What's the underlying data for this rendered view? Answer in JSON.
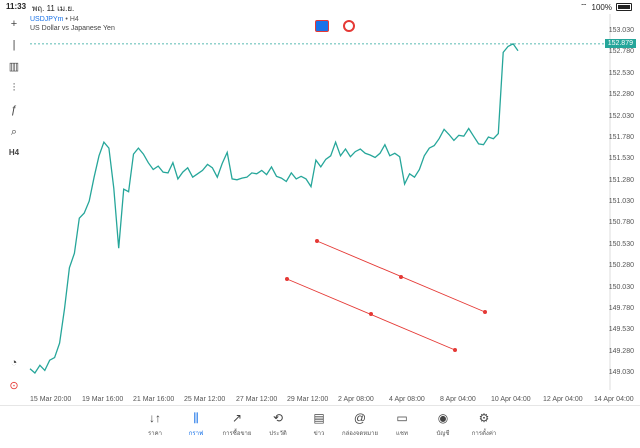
{
  "status": {
    "time": "11:33",
    "date": "พฤ. 11 เม.ย.",
    "battery": "100%"
  },
  "header": {
    "symbol": "USDJPYm",
    "separator": "•",
    "timeframe": "H4",
    "subtitle": "US Dollar vs Japanese Yen"
  },
  "toolbar_left": [
    {
      "name": "crosshair-icon",
      "glyph": "+"
    },
    {
      "name": "candles-icon",
      "glyph": "|"
    },
    {
      "name": "indicators-icon",
      "glyph": "▥"
    },
    {
      "name": "settings-sliders-icon",
      "glyph": "⫶"
    },
    {
      "name": "function-icon",
      "glyph": "ƒ"
    },
    {
      "name": "objects-icon",
      "glyph": "⌕"
    },
    {
      "name": "timeframe-label",
      "glyph": "H4"
    }
  ],
  "price_tag": "152.879",
  "chart_data": {
    "type": "line",
    "series": [
      {
        "values": [
          149.08,
          149.03,
          149.12,
          149.06,
          149.18,
          149.21,
          149.38,
          149.78,
          150.26,
          150.43,
          150.84,
          150.9,
          151.04,
          151.32,
          151.57,
          151.73,
          151.66,
          151.19,
          150.49,
          151.18,
          151.15,
          151.59,
          151.66,
          151.59,
          151.49,
          151.41,
          151.45,
          151.38,
          151.37,
          151.49,
          151.3,
          151.38,
          151.43,
          151.32,
          151.36,
          151.4,
          151.47,
          151.43,
          151.32,
          151.48,
          151.61,
          151.3,
          151.29,
          151.31,
          151.32,
          151.37,
          151.36,
          151.4,
          151.35,
          151.44,
          151.33,
          151.31,
          151.27,
          151.37,
          151.3,
          151.33,
          151.3,
          151.21,
          151.52,
          151.44,
          151.53,
          151.57,
          151.73,
          151.57,
          151.65,
          151.56,
          151.62,
          151.65,
          151.6,
          151.58,
          151.55,
          151.6,
          151.7,
          151.57,
          151.6,
          151.56,
          151.24,
          151.36,
          151.32,
          151.41,
          151.57,
          151.66,
          151.69,
          151.77,
          151.88,
          151.82,
          151.75,
          151.81,
          151.8,
          151.89,
          151.8,
          151.71,
          151.7,
          151.79,
          151.77,
          151.83,
          152.78,
          152.85,
          152.88,
          152.8
        ]
      }
    ],
    "y_ticks": [
      "153.030",
      "152.780",
      "152.530",
      "152.280",
      "152.030",
      "151.780",
      "151.530",
      "151.280",
      "151.030",
      "150.780",
      "150.530",
      "150.280",
      "150.030",
      "149.780",
      "149.530",
      "149.280",
      "149.030"
    ],
    "x_ticks": [
      "15 Mar 20:00",
      "19 Mar 16:00",
      "21 Mar 16:00",
      "25 Mar 12:00",
      "27 Mar 12:00",
      "29 Mar 12:00",
      "2 Apr 08:00",
      "4 Apr 08:00",
      "8 Apr 04:00",
      "10 Apr 04:00",
      "12 Apr 04:00",
      "14 Apr 04:00"
    ],
    "ylim": [
      149.03,
      153.03
    ],
    "current_price": 152.879,
    "colors": {
      "line": "#26a69a",
      "trend": "#e53935"
    }
  },
  "nav": [
    {
      "label": "ราคา",
      "icon": "↓↑",
      "name": "nav-quotes"
    },
    {
      "label": "กราฟ",
      "icon": "⫼",
      "name": "nav-chart",
      "active": true
    },
    {
      "label": "การซื้อขาย",
      "icon": "↗",
      "name": "nav-trade"
    },
    {
      "label": "ประวัติ",
      "icon": "⟲",
      "name": "nav-history"
    },
    {
      "label": "ข่าว",
      "icon": "▤",
      "name": "nav-news"
    },
    {
      "label": "กล่องจดหมาย",
      "icon": "@",
      "name": "nav-mailbox"
    },
    {
      "label": "แชท",
      "icon": "▭",
      "name": "nav-chat"
    },
    {
      "label": "บัญชี",
      "icon": "◉",
      "name": "nav-account"
    },
    {
      "label": "การตั้งค่า",
      "icon": "⚙",
      "name": "nav-settings"
    }
  ]
}
